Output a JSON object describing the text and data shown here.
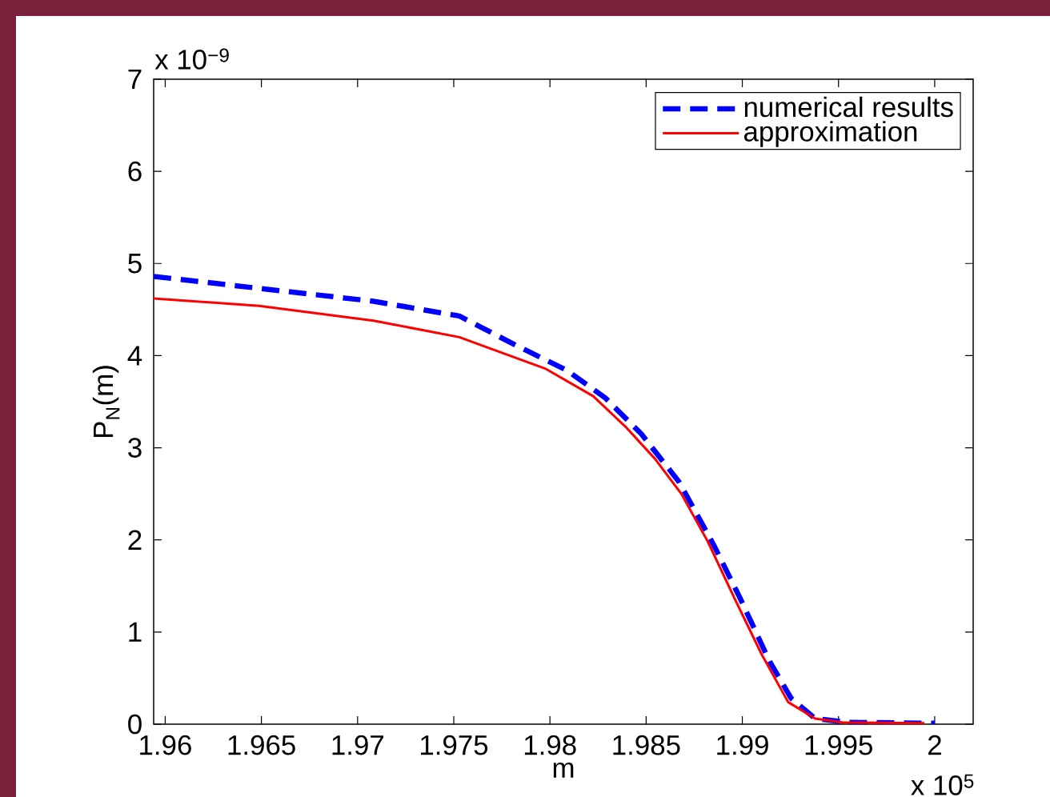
{
  "chart_data": {
    "type": "line",
    "xlabel": "m",
    "ylabel": "P$_{N}$(m)",
    "xlim": [
      1.9594,
      2.002
    ],
    "ylim": [
      0,
      7
    ],
    "xticks": [
      1.96,
      1.965,
      1.97,
      1.975,
      1.98,
      1.985,
      1.99,
      1.995,
      2
    ],
    "yticks": [
      0,
      1,
      2,
      3,
      4,
      5,
      6,
      7
    ],
    "annotations": [
      "x 10$^{−9}$",
      "x 10$^{5}$"
    ],
    "legend": "top right",
    "series": [
      {
        "name": "numerical results",
        "color": "#0000ff",
        "line_style": "dashed",
        "x": [
          1.9594,
          1.96488,
          1.97083,
          1.97529,
          1.97825,
          1.98088,
          1.98288,
          1.98475,
          1.98671,
          1.9885,
          1.98988,
          1.99142,
          1.99254,
          1.99379,
          1.9955,
          2.0
        ],
        "values": [
          4.86,
          4.73,
          4.59,
          4.43,
          4.11,
          3.84,
          3.54,
          3.15,
          2.63,
          1.95,
          1.37,
          0.68,
          0.28,
          0.06,
          0.02,
          0.01
        ]
      },
      {
        "name": "approximation",
        "color": "#ff0000",
        "line_style": "solid",
        "x": [
          1.9594,
          1.96488,
          1.97083,
          1.97529,
          1.97975,
          1.98225,
          1.98392,
          1.98546,
          1.98683,
          1.98821,
          1.98963,
          1.991,
          1.99238,
          1.99379,
          1.9952,
          1.99946
        ],
        "values": [
          4.62,
          4.54,
          4.38,
          4.2,
          3.86,
          3.56,
          3.23,
          2.88,
          2.5,
          1.98,
          1.35,
          0.76,
          0.24,
          0.06,
          0.02,
          0.01
        ]
      }
    ]
  }
}
